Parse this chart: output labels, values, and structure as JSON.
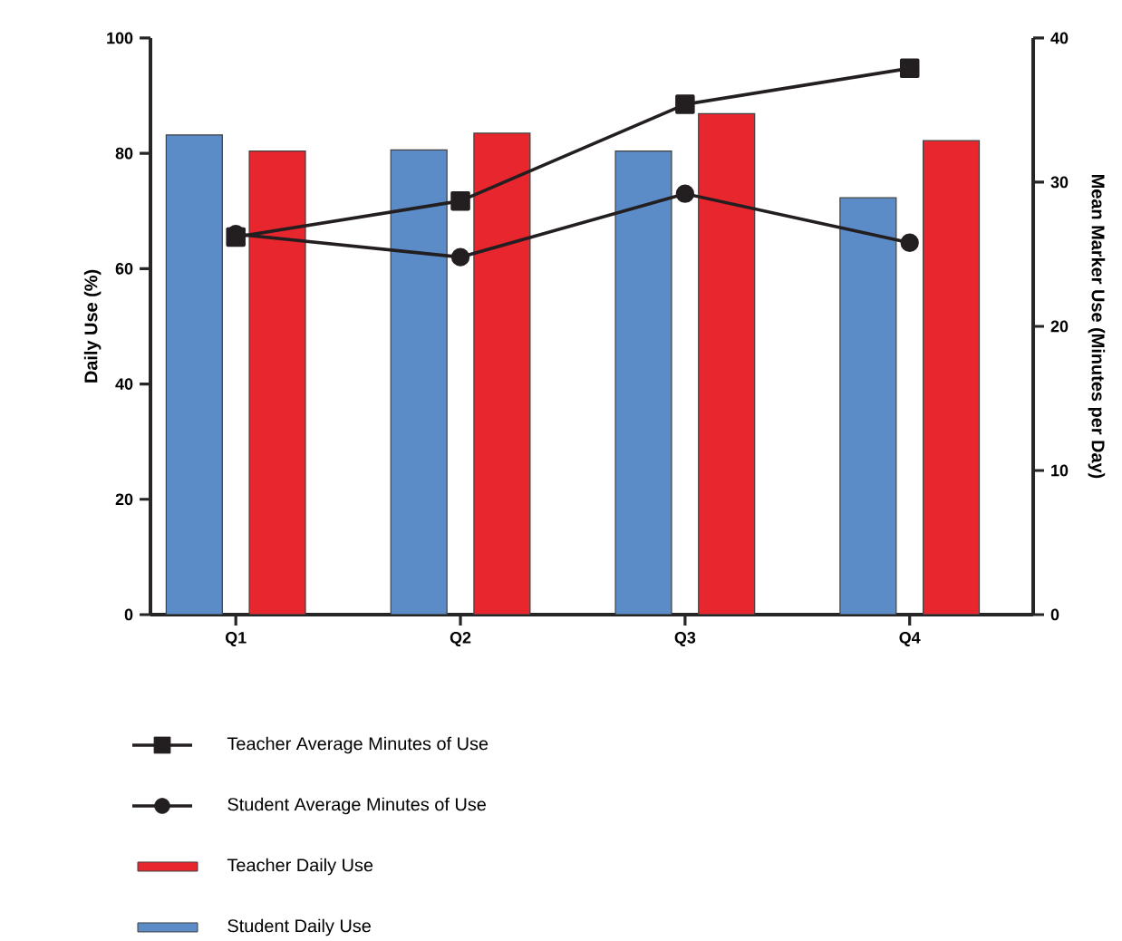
{
  "chart_data": {
    "type": "bar",
    "categories": [
      "Q1",
      "Q2",
      "Q3",
      "Q4"
    ],
    "ylabel": "Daily Use (%)",
    "y2label": "Mean Marker Use (Minutes per Day)",
    "ylim": [
      0,
      100
    ],
    "yticks": [
      0,
      20,
      40,
      60,
      80,
      100
    ],
    "y2lim": [
      0,
      40
    ],
    "y2ticks": [
      0,
      10,
      20,
      30,
      40
    ],
    "legend": "bottom",
    "series": [
      {
        "name": "Student Daily Use",
        "color": "#5b8cc8",
        "values": [
          83.2,
          80.6,
          80.4,
          72.3
        ]
      },
      {
        "name": "Teacher Daily Use",
        "color": "#e8262d",
        "values": [
          80.4,
          83.5,
          86.9,
          82.2
        ]
      },
      {
        "name": "Student Average Minutes of Use",
        "type": "line",
        "axis": "y2",
        "marker": "circle",
        "line_style": "solid",
        "color": "#231f20",
        "values": [
          26.4,
          24.8,
          29.2,
          25.8
        ]
      },
      {
        "name": "Teacher Average Minutes of Use",
        "type": "line",
        "axis": "y2",
        "marker": "square",
        "line_style": "solid",
        "color": "#231f20",
        "values": [
          26.2,
          28.7,
          35.4,
          37.9
        ]
      }
    ]
  }
}
